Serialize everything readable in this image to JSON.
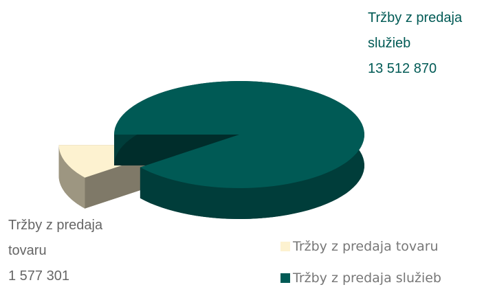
{
  "chart_data": {
    "type": "pie",
    "style": "3d",
    "categories": [
      "Tržby z predaja tovaru",
      "Tržby z predaja služieb"
    ],
    "values": [
      1577301,
      13512870
    ],
    "value_labels": [
      "1 577 301",
      "13 512 870"
    ],
    "colors": [
      "#fdf2d0",
      "#005a55"
    ],
    "legend": "bottom-right"
  }
}
